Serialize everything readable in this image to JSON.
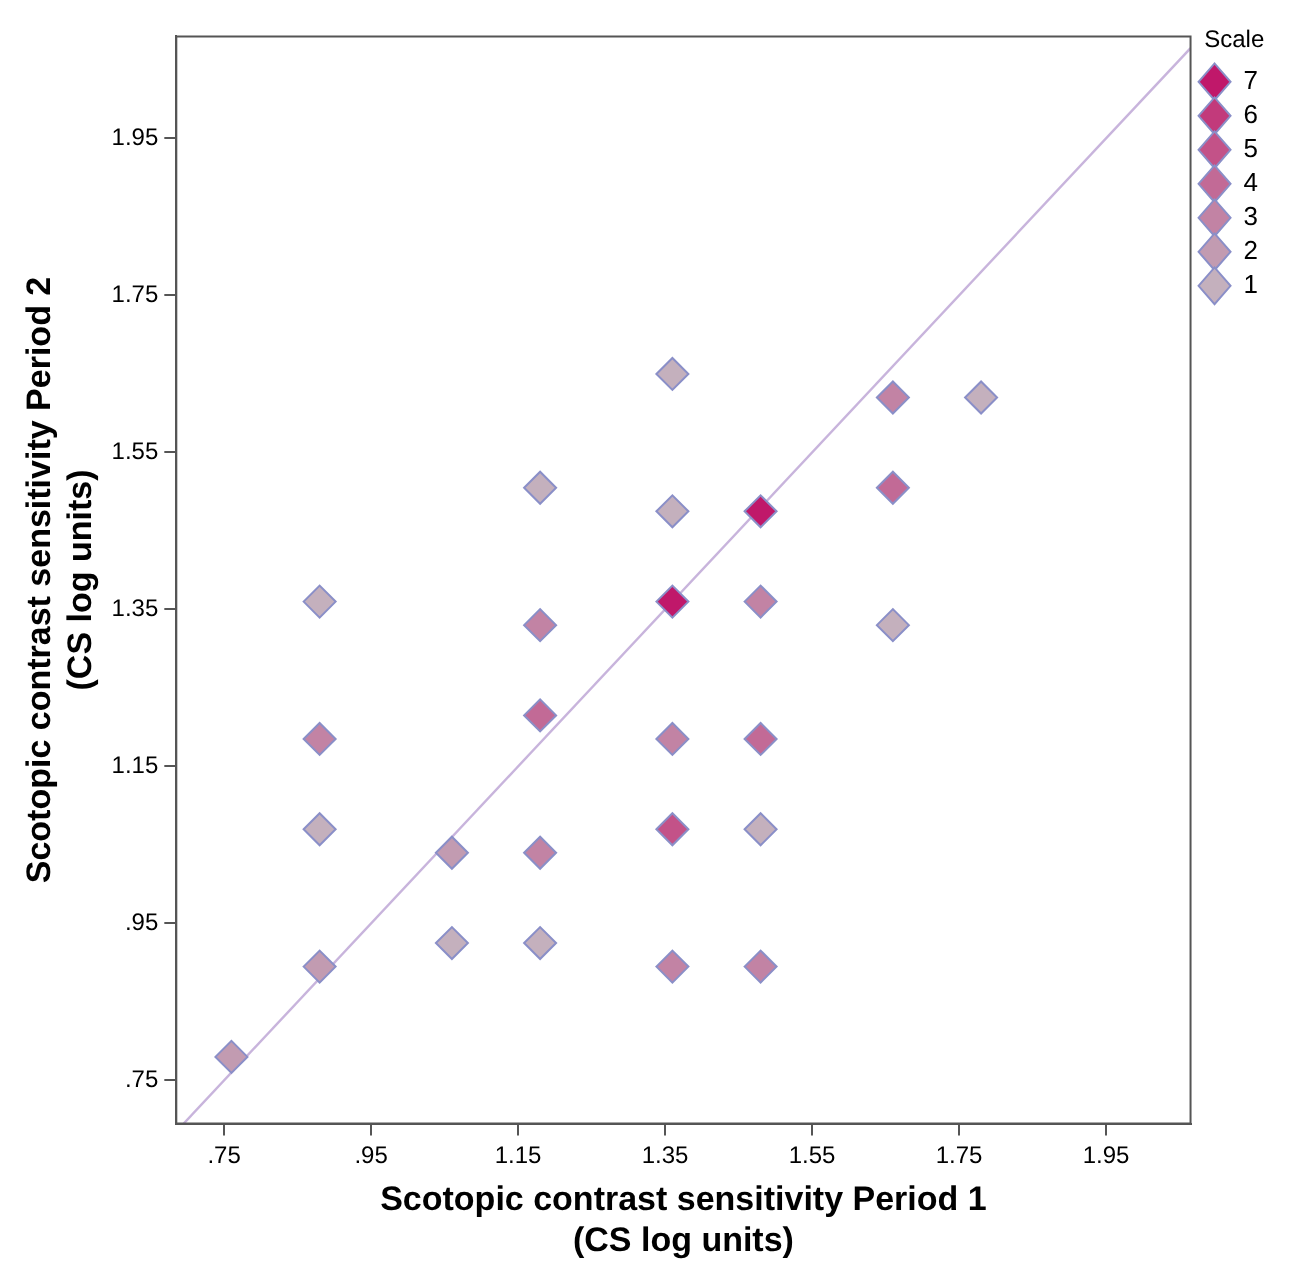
{
  "chart_data": {
    "type": "scatter",
    "xlabel": "Scotopic contrast sensitivity Period 1\n(CS log units)",
    "ylabel": "Scotopic contrast sensitivity Period 2\n(CS log units)",
    "legend_title": "Scale",
    "legend": "top right",
    "grid": false,
    "marker": "diamond",
    "xlim": [
      0.685,
      2.065
    ],
    "ylim": [
      0.695,
      2.08
    ],
    "xticks": [
      {
        "value": 0.75,
        "label": ".75"
      },
      {
        "value": 0.95,
        "label": ".95"
      },
      1.15,
      1.35,
      1.55,
      1.75,
      1.95
    ],
    "yticks": [
      {
        "value": 0.75,
        "label": ".75"
      },
      {
        "value": 0.95,
        "label": ".95"
      },
      1.15,
      1.35,
      1.55,
      1.75,
      1.95
    ],
    "series": [
      {
        "name": "7",
        "color": "#c0186a",
        "x": [
          1.36,
          1.48
        ],
        "values": [
          1.36,
          1.475
        ]
      },
      {
        "name": "6",
        "color": "#c23a7b"
      },
      {
        "name": "5",
        "color": "#c35288",
        "x": [
          1.36
        ],
        "values": [
          1.07
        ]
      },
      {
        "name": "4",
        "color": "#c26a96",
        "x": [
          1.18,
          1.48,
          1.66
        ],
        "values": [
          1.215,
          1.185,
          1.505
        ]
      },
      {
        "name": "3",
        "color": "#c283a4",
        "x": [
          0.88,
          1.18,
          1.18,
          1.36,
          1.36,
          1.48,
          1.48,
          1.66
        ],
        "values": [
          1.185,
          1.33,
          1.04,
          1.185,
          0.895,
          1.36,
          0.895,
          1.62
        ]
      },
      {
        "name": "2",
        "color": "#c29bb1",
        "x": [
          0.76,
          0.88,
          1.06
        ],
        "values": [
          0.78,
          0.895,
          1.04
        ]
      },
      {
        "name": "1",
        "color": "#c4b0bd",
        "x": [
          0.88,
          0.88,
          1.06,
          1.18,
          1.18,
          1.36,
          1.36,
          1.48,
          1.66,
          1.78
        ],
        "values": [
          1.36,
          1.07,
          0.925,
          1.505,
          0.925,
          1.65,
          1.475,
          1.07,
          1.33,
          1.62
        ]
      },
      {
        "type": "line",
        "color": "#c8b4dc",
        "marker": "none",
        "x": [
          0.695,
          2.065
        ],
        "values": [
          0.695,
          2.065
        ]
      }
    ]
  }
}
